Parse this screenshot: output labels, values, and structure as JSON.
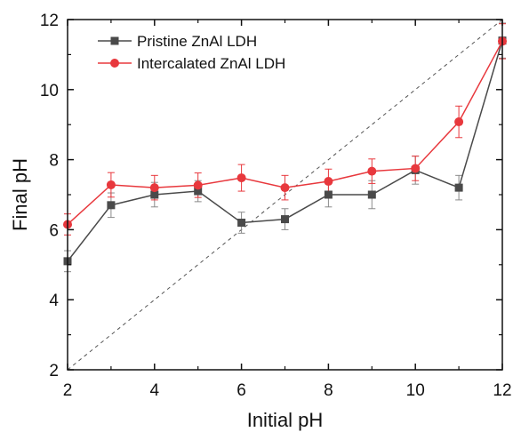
{
  "chart_data": {
    "type": "line",
    "title": "",
    "xlabel": "Initial pH",
    "ylabel": "Final pH",
    "xlim": [
      2,
      12
    ],
    "ylim": [
      2,
      12
    ],
    "x_ticks": [
      2,
      4,
      6,
      8,
      10,
      12
    ],
    "y_ticks": [
      2,
      4,
      6,
      8,
      10,
      12
    ],
    "grid": false,
    "legend_position": "top-left",
    "reference_line": {
      "from": [
        2,
        2
      ],
      "to": [
        12,
        12
      ],
      "style": "dashed",
      "color": "#555555"
    },
    "x": [
      2,
      3,
      4,
      5,
      6,
      7,
      8,
      9,
      10,
      11,
      12
    ],
    "series": [
      {
        "name": "Pristine ZnAl LDH",
        "color": "#4a4a4a",
        "marker": "square",
        "values": [
          5.1,
          6.7,
          7.0,
          7.1,
          6.2,
          6.3,
          7.0,
          7.0,
          7.7,
          7.2,
          11.4
        ],
        "errors": [
          0.3,
          0.35,
          0.35,
          0.3,
          0.3,
          0.3,
          0.35,
          0.4,
          0.4,
          0.35,
          0.5
        ]
      },
      {
        "name": "Intercalated ZnAl LDH",
        "color": "#e8383d",
        "marker": "circle",
        "values": [
          6.15,
          7.28,
          7.2,
          7.27,
          7.48,
          7.2,
          7.38,
          7.67,
          7.75,
          9.08,
          11.38
        ],
        "errors": [
          0.3,
          0.35,
          0.35,
          0.35,
          0.38,
          0.35,
          0.35,
          0.35,
          0.35,
          0.45,
          0.5
        ]
      }
    ]
  }
}
